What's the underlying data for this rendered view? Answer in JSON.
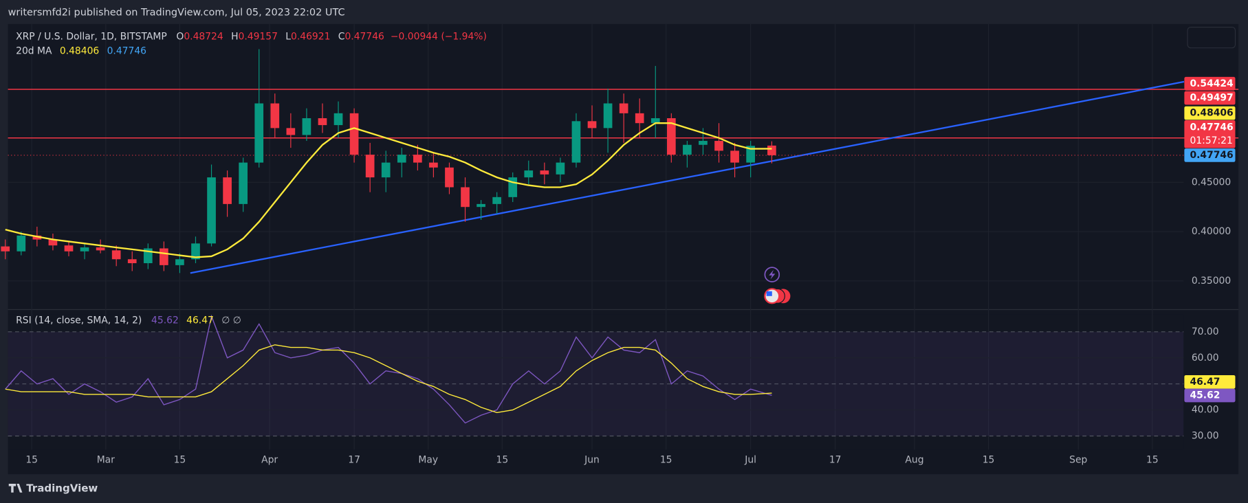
{
  "page": {
    "publisher": "writersmfd2i published on TradingView.com, Jul 05, 2023 22:02 UTC",
    "brand": "TradingView"
  },
  "chart_data": {
    "type": "candlestick",
    "title": "XRP / U.S. Dollar, 1D, BITSTAMP",
    "ohlc_prefixes": [
      "O",
      "H",
      "L",
      "C"
    ],
    "change": {
      "value": -0.00944,
      "label": "−0.00944 (−1.94%)"
    },
    "countdown": "01:57:21",
    "x": [
      41,
      44,
      47,
      50,
      53,
      56,
      59,
      62,
      65,
      68,
      71,
      74,
      77,
      80,
      83,
      86,
      89,
      92,
      95,
      98,
      101,
      104,
      107,
      110,
      113,
      116,
      119,
      122,
      125,
      128,
      131,
      134,
      137,
      140,
      143,
      146,
      149,
      152,
      155,
      158,
      161,
      164,
      167,
      170,
      173,
      176,
      179,
      182,
      186
    ],
    "candles": {
      "up_color": "#089981",
      "down_color": "#f23645",
      "open": [
        0.385,
        0.38,
        0.396,
        0.392,
        0.386,
        0.38,
        0.384,
        0.381,
        0.372,
        0.368,
        0.383,
        0.366,
        0.372,
        0.388,
        0.455,
        0.428,
        0.47,
        0.53,
        0.505,
        0.498,
        0.515,
        0.508,
        0.52,
        0.478,
        0.455,
        0.47,
        0.478,
        0.47,
        0.465,
        0.445,
        0.425,
        0.428,
        0.435,
        0.455,
        0.462,
        0.458,
        0.47,
        0.512,
        0.505,
        0.53,
        0.52,
        0.51,
        0.515,
        0.478,
        0.488,
        0.492,
        0.482,
        0.47,
        0.48724
      ],
      "high": [
        0.392,
        0.4,
        0.405,
        0.398,
        0.39,
        0.388,
        0.392,
        0.386,
        0.38,
        0.388,
        0.39,
        0.378,
        0.395,
        0.468,
        0.462,
        0.475,
        0.585,
        0.54,
        0.52,
        0.525,
        0.53,
        0.532,
        0.525,
        0.49,
        0.482,
        0.485,
        0.488,
        0.48,
        0.47,
        0.455,
        0.432,
        0.44,
        0.46,
        0.472,
        0.47,
        0.475,
        0.52,
        0.528,
        0.545,
        0.54,
        0.535,
        0.568,
        0.52,
        0.492,
        0.505,
        0.51,
        0.49,
        0.492,
        0.49157
      ],
      "low": [
        0.372,
        0.376,
        0.385,
        0.381,
        0.375,
        0.372,
        0.378,
        0.365,
        0.36,
        0.362,
        0.36,
        0.358,
        0.368,
        0.385,
        0.415,
        0.42,
        0.465,
        0.495,
        0.485,
        0.492,
        0.5,
        0.495,
        0.47,
        0.44,
        0.44,
        0.455,
        0.462,
        0.455,
        0.438,
        0.41,
        0.412,
        0.418,
        0.43,
        0.448,
        0.448,
        0.45,
        0.465,
        0.495,
        0.48,
        0.49,
        0.495,
        0.495,
        0.47,
        0.465,
        0.478,
        0.47,
        0.455,
        0.455,
        0.46921
      ],
      "close": [
        0.38,
        0.396,
        0.392,
        0.386,
        0.38,
        0.384,
        0.381,
        0.372,
        0.368,
        0.383,
        0.366,
        0.372,
        0.388,
        0.455,
        0.428,
        0.47,
        0.53,
        0.505,
        0.498,
        0.515,
        0.508,
        0.52,
        0.478,
        0.455,
        0.47,
        0.478,
        0.47,
        0.465,
        0.445,
        0.425,
        0.428,
        0.435,
        0.455,
        0.462,
        0.458,
        0.47,
        0.512,
        0.505,
        0.53,
        0.52,
        0.51,
        0.515,
        0.478,
        0.488,
        0.492,
        0.482,
        0.47,
        0.487,
        0.47746
      ]
    },
    "ma": {
      "name": "20d MA",
      "color": "#ffeb3b",
      "values": [
        0.402,
        0.398,
        0.395,
        0.392,
        0.39,
        0.388,
        0.386,
        0.384,
        0.382,
        0.38,
        0.378,
        0.376,
        0.374,
        0.375,
        0.382,
        0.393,
        0.41,
        0.43,
        0.45,
        0.47,
        0.488,
        0.5,
        0.505,
        0.5,
        0.495,
        0.49,
        0.485,
        0.48,
        0.476,
        0.47,
        0.462,
        0.455,
        0.45,
        0.447,
        0.445,
        0.445,
        0.448,
        0.458,
        0.472,
        0.488,
        0.5,
        0.51,
        0.51,
        0.505,
        0.5,
        0.495,
        0.488,
        0.484,
        0.48406
      ]
    },
    "hlines": [
      {
        "value": 0.54424,
        "color": "#f23645"
      },
      {
        "value": 0.49497,
        "color": "#f23645"
      }
    ],
    "trendline": {
      "x": [
        76,
        264
      ],
      "values": [
        0.358,
        0.552
      ],
      "color": "#2962ff"
    },
    "xlim": [
      41.5,
      263.9
    ],
    "xticks": [
      {
        "value": 46,
        "label": "15"
      },
      {
        "value": 60,
        "label": "Mar"
      },
      {
        "value": 74,
        "label": "15"
      },
      {
        "value": 91,
        "label": "Apr"
      },
      {
        "value": 107,
        "label": "17"
      },
      {
        "value": 121,
        "label": "May"
      },
      {
        "value": 135,
        "label": "15"
      },
      {
        "value": 152,
        "label": "Jun"
      },
      {
        "value": 166,
        "label": "15"
      },
      {
        "value": 182,
        "label": "Jul"
      },
      {
        "value": 198,
        "label": "17"
      },
      {
        "value": 213,
        "label": "Aug"
      },
      {
        "value": 227,
        "label": "15"
      },
      {
        "value": 244,
        "label": "Sep"
      },
      {
        "value": 258,
        "label": "15"
      }
    ],
    "ylim": [
      0.3242,
      0.6105
    ],
    "yticks": [
      {
        "value": 0.35,
        "label": "0.35000"
      },
      {
        "value": 0.4,
        "label": "0.40000"
      },
      {
        "value": 0.45,
        "label": "0.45000"
      }
    ],
    "rsi": {
      "title": "RSI (14, close, SMA, 14, 2)",
      "extra": "∅ ∅",
      "ylim": [
        24.8,
        76.7
      ],
      "yticks": [
        {
          "value": 30,
          "label": "30.00"
        },
        {
          "value": 40,
          "label": "40.00"
        },
        {
          "value": 60,
          "label": "60.00"
        },
        {
          "value": 70,
          "label": "70.00"
        }
      ],
      "series": [
        {
          "name": "RSI",
          "color": "#7e57c2",
          "values": [
            48,
            55,
            50,
            52,
            46,
            50,
            47,
            43,
            45,
            52,
            42,
            44,
            48,
            76,
            60,
            63,
            73,
            62,
            60,
            61,
            63,
            64,
            58,
            50,
            55,
            54,
            52,
            48,
            42,
            35,
            38,
            40,
            50,
            55,
            50,
            55,
            68,
            60,
            68,
            63,
            62,
            67,
            50,
            55,
            53,
            48,
            44,
            48,
            45.62
          ]
        },
        {
          "name": "SMA",
          "color": "#ffeb3b",
          "values": [
            48,
            47,
            47,
            47,
            47,
            46,
            46,
            46,
            46,
            45,
            45,
            45,
            45,
            47,
            52,
            57,
            63,
            65,
            64,
            64,
            63,
            63,
            62,
            60,
            57,
            54,
            51,
            49,
            46,
            44,
            41,
            39,
            40,
            43,
            46,
            49,
            55,
            59,
            62,
            64,
            64,
            63,
            58,
            52,
            49,
            47,
            46,
            46,
            46.47
          ]
        }
      ]
    }
  }
}
